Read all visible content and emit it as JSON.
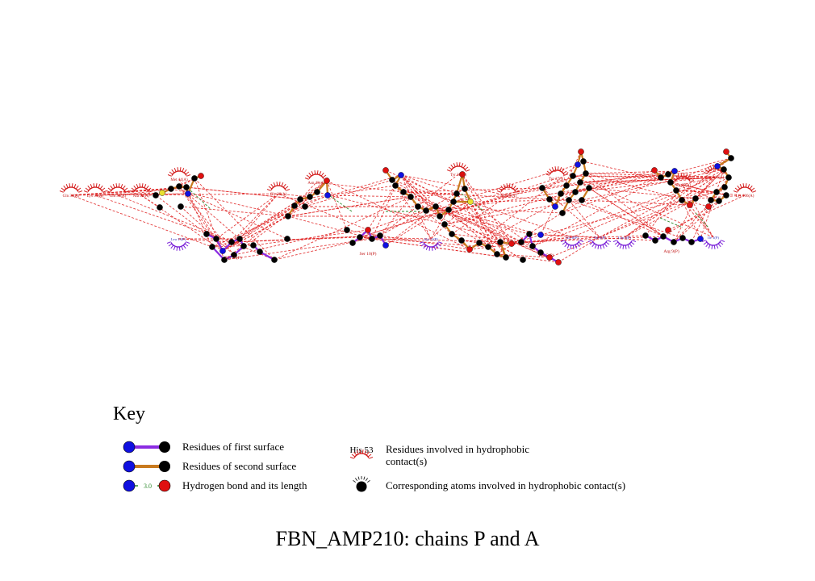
{
  "title": "FBN_AMP210: chains P and A",
  "key": {
    "heading": "Key",
    "first_surface": "Residues of first surface",
    "second_surface": "Residues of second surface",
    "hbond": "Hydrogen bond and its length",
    "hbond_example_length": "3.0",
    "hydrophobic_residue_label": "His 53",
    "hydrophobic_residues": "Residues involved in hydrophobic contact(s)",
    "hydrophobic_atoms": "Corresponding atoms involved in hydrophobic contact(s)"
  },
  "colors": {
    "first_surface_bond": "#8b2be2",
    "second_surface_bond": "#c87a1e",
    "hydrogen_bond": "#2e8b2e",
    "contact_line": "#e02020",
    "nitrogen": "#1010e0",
    "oxygen": "#e01010",
    "carbon": "#000000",
    "sulfur": "#e8e030",
    "chain_a_arc": "#d42020",
    "chain_p_arc": "#7a20d8",
    "residue_label": "#c01010",
    "chain_p_label": "#3030c0"
  },
  "chain_a_hydrophobic_residues": [
    "Gln 34(A)",
    "Lys 35(A)",
    "Gln 33(A)",
    "Ala 42(A)",
    "Met 44(A)",
    "Asn 43(A)",
    "Gly 38(A)",
    "Tyr 30(A)",
    "Ala 26(A)",
    "Tyr 27(A)",
    "Gln 87(A)",
    "Tyr 146(A)",
    "Lys 106(A)"
  ],
  "chain_p_hydrophobic_residues": [
    "Leu 13(P)",
    "Ala 11(P)",
    "Gly 8(P)",
    "Val 6(P)",
    "Leu 3(P)",
    "Ile 1(P)"
  ],
  "chain_p_residues": [
    "Trp 15(P)",
    "Ser 10(P)",
    "Lys 5(P)",
    "Arg 9(P)"
  ]
}
